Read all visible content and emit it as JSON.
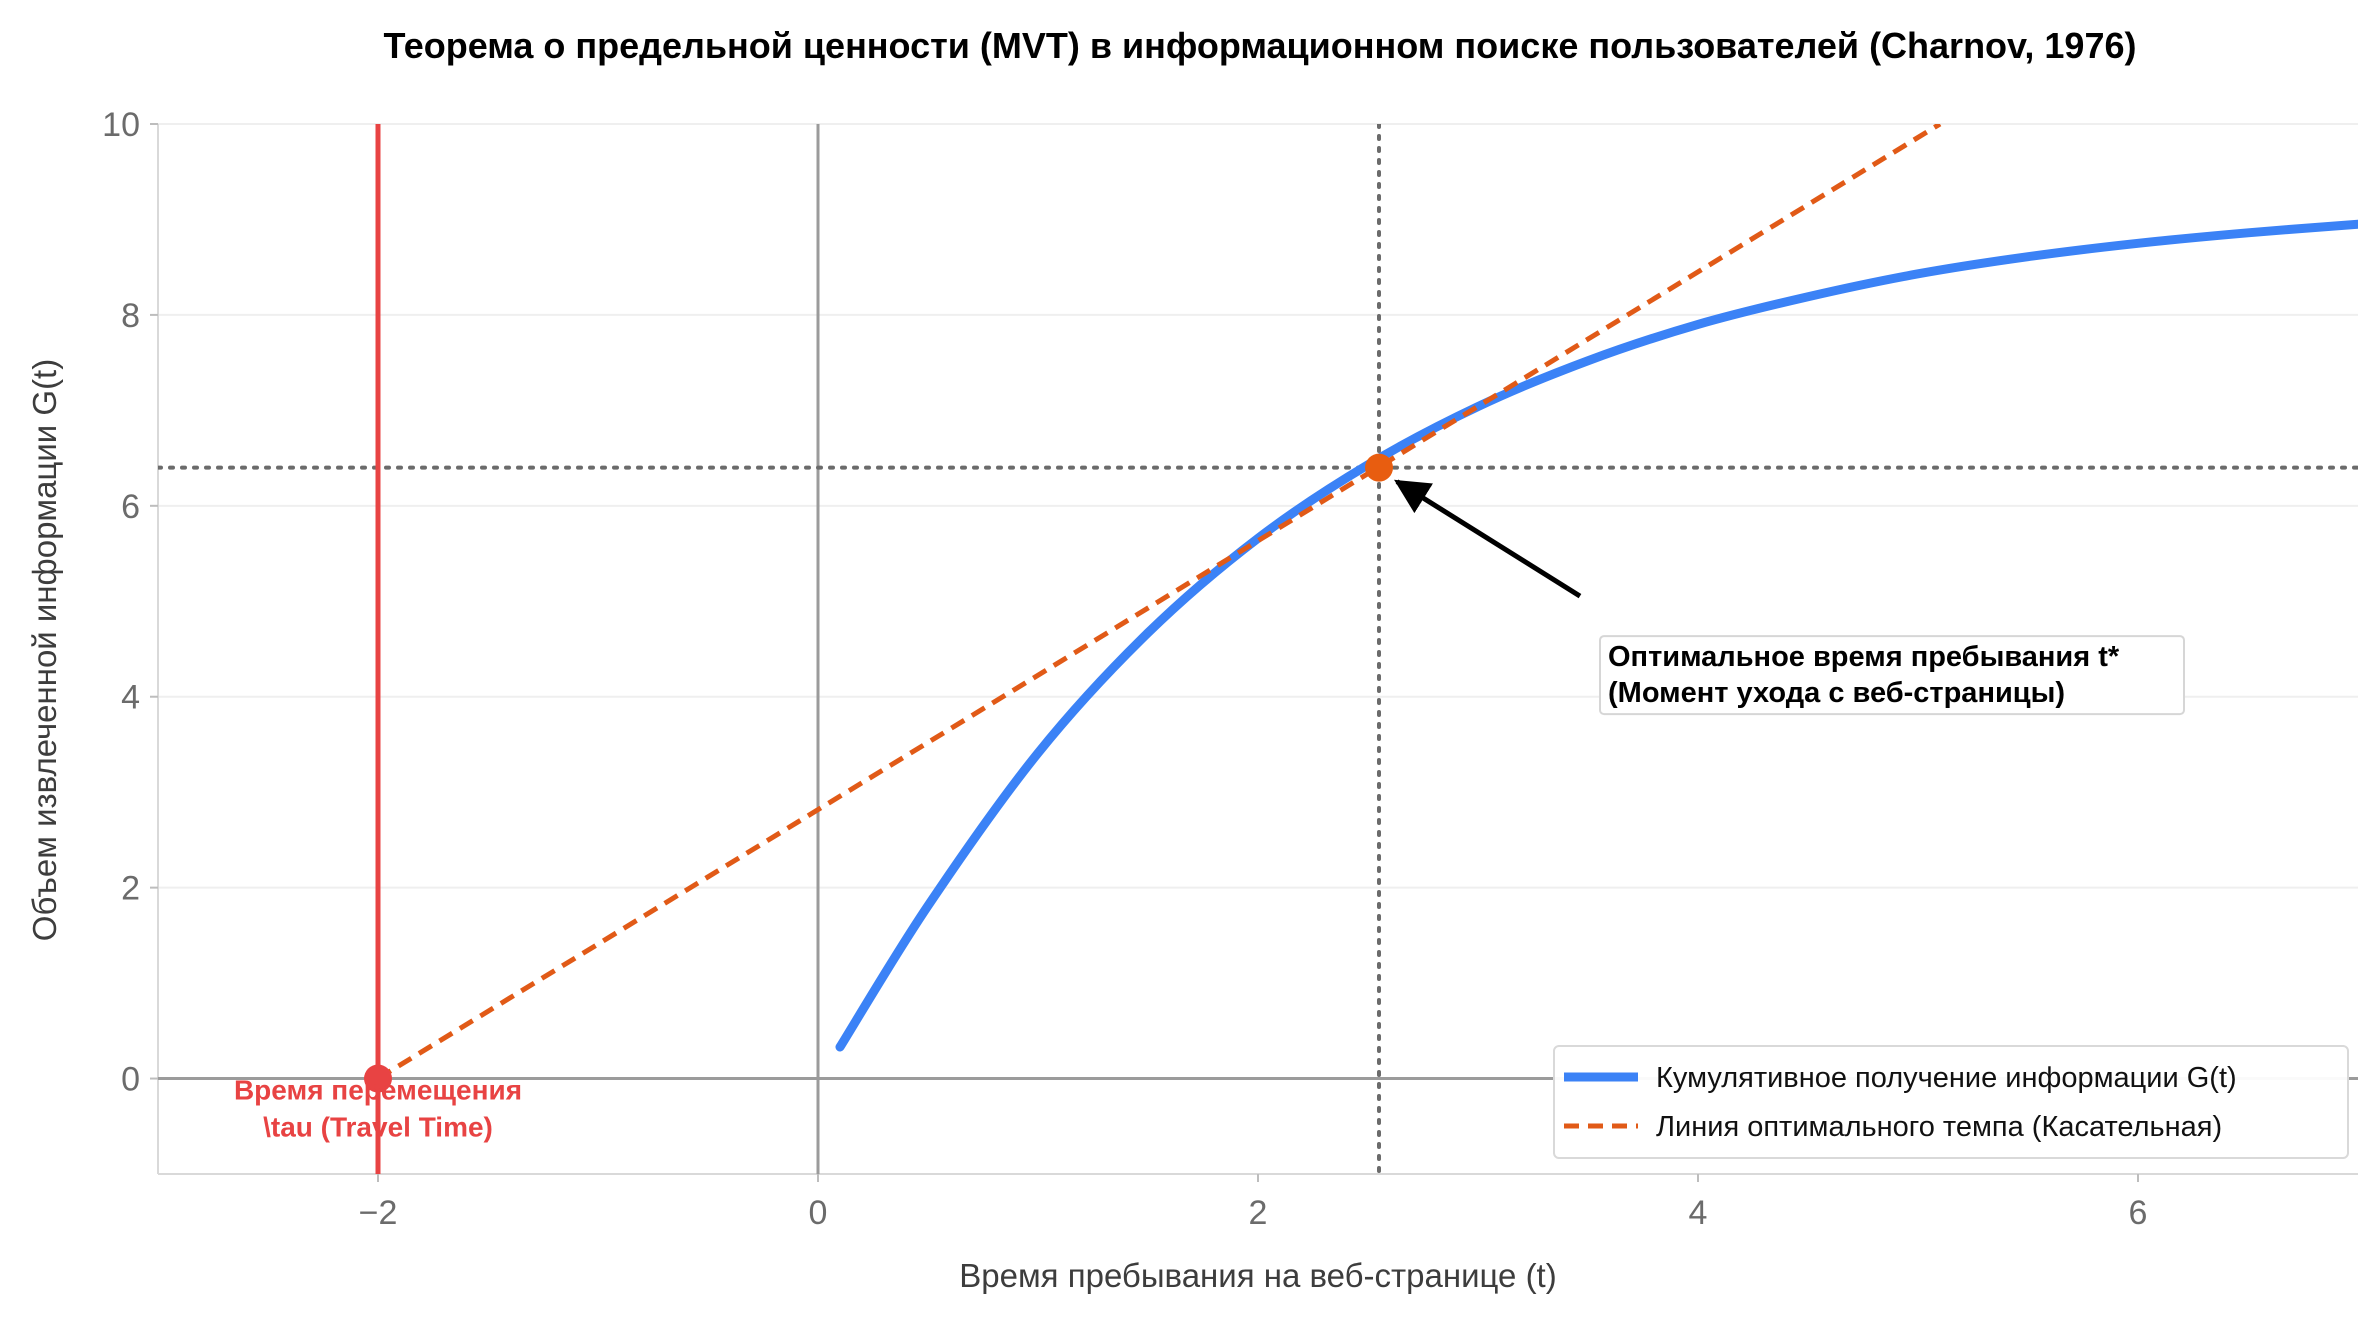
{
  "colors": {
    "curve": "#3b82f6",
    "tangent": "#e15a17",
    "travel": "#e84343",
    "optimal_point": "#e85d10",
    "grid": "#efefef",
    "axis_zero": "#9b9b9b",
    "reference": "#6b6b6b"
  },
  "chart_data": {
    "type": "line",
    "title": "Теорема о предельной ценности (MVT) в информационном поиске пользователей (Charnov, 1976)",
    "xlabel": "Время пребывания на веб-странице (t)",
    "ylabel": "Объем извлеченной информации G(t)",
    "xlim": [
      -3,
      7
    ],
    "ylim": [
      -1,
      10
    ],
    "x_ticks": [
      -2,
      0,
      2,
      4,
      6
    ],
    "x_tick_labels": [
      "−2",
      "0",
      "2",
      "4",
      "6"
    ],
    "y_ticks": [
      0,
      2,
      4,
      6,
      8,
      10
    ],
    "y_tick_labels": [
      "0",
      "2",
      "4",
      "6",
      "8",
      "10"
    ],
    "grid": "horizontal",
    "legend_position": "bottom-right",
    "series": [
      {
        "name": "Кумулятивное получение информации G(t)",
        "kind": "curve",
        "style": "solid",
        "x": [
          0.1,
          0.5,
          1.0,
          1.5,
          2.0,
          2.5,
          3.0,
          3.5,
          4.0,
          4.5,
          5.0,
          5.5,
          6.0,
          6.5,
          7.0
        ],
        "y": [
          0.33,
          1.81,
          3.41,
          4.67,
          5.66,
          6.43,
          7.04,
          7.52,
          7.9,
          8.19,
          8.43,
          8.61,
          8.75,
          8.86,
          8.95
        ]
      },
      {
        "name": "Линия оптимального темпа (Касательная)",
        "kind": "tangent",
        "style": "dashed",
        "x": [
          -2.0,
          5.1
        ],
        "y": [
          0.0,
          10.0
        ]
      }
    ],
    "reference_lines": {
      "travel_time_x": -2.0,
      "optimal_t": 2.55,
      "optimal_g": 6.4,
      "zero_x": 0,
      "zero_y": 0
    },
    "points": [
      {
        "x": -2.0,
        "y": 0.0,
        "role": "travel"
      },
      {
        "x": 2.55,
        "y": 6.4,
        "role": "optimal"
      }
    ],
    "annotations": {
      "optimal": {
        "lines": [
          "Оптимальное время пребывания t*",
          "(Момент ухода с веб-страницы)"
        ],
        "text_at": [
          3.5,
          4.3
        ],
        "arrow_to": [
          2.55,
          6.4
        ]
      },
      "travel": {
        "lines": [
          "Время перемещения",
          "\\tau (Travel Time)"
        ]
      }
    }
  }
}
